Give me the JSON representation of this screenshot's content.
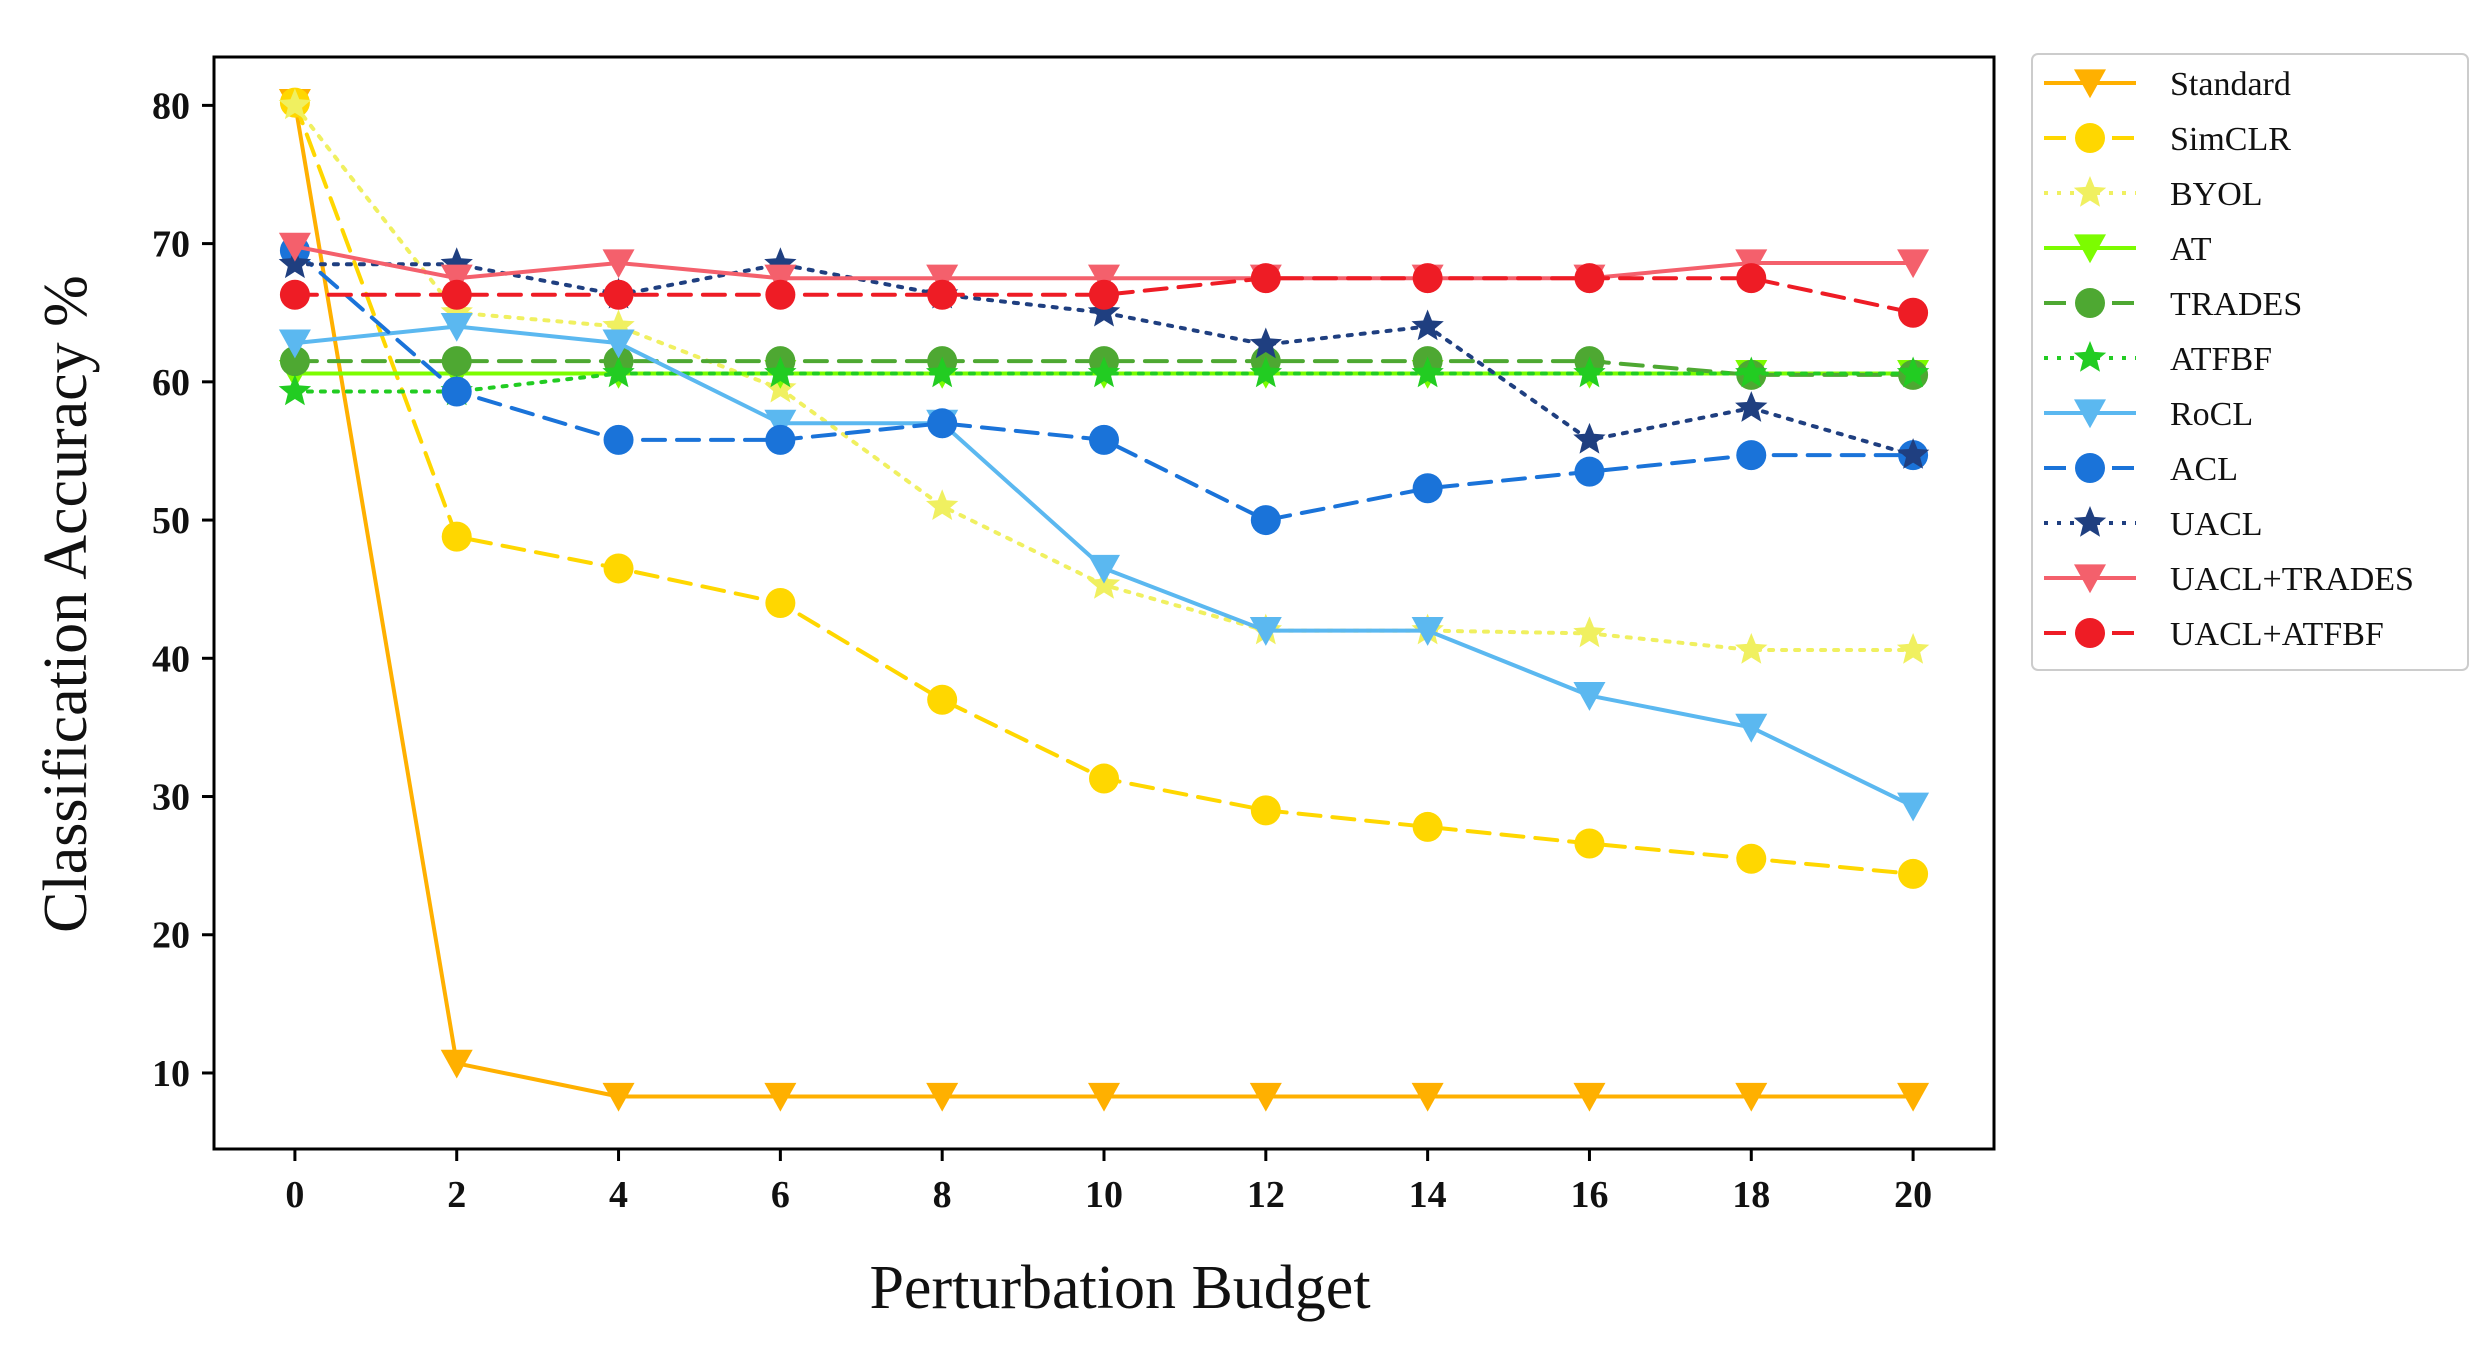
{
  "chart_data": {
    "type": "line",
    "title": "",
    "xlabel": "Perturbation Budget",
    "ylabel": "Classification Accuracy %",
    "x": [
      0,
      2,
      4,
      6,
      8,
      10,
      12,
      14,
      16,
      18,
      20
    ],
    "xlim": [
      -1,
      21
    ],
    "ylim": [
      4.5,
      83.5
    ],
    "xticks": [
      0,
      2,
      4,
      6,
      8,
      10,
      12,
      14,
      16,
      18,
      20
    ],
    "yticks": [
      10,
      20,
      30,
      40,
      50,
      60,
      70,
      80
    ],
    "grid": false,
    "legend_position": "outside-right",
    "series": [
      {
        "name": "Standard",
        "color": "#FFB000",
        "dash": "solid",
        "marker": "triangle-down",
        "values": [
          80.2,
          10.7,
          8.3,
          8.3,
          8.3,
          8.3,
          8.3,
          8.3,
          8.3,
          8.3,
          8.3
        ]
      },
      {
        "name": "SimCLR",
        "color": "#FFD700",
        "dash": "dashed",
        "marker": "circle",
        "values": [
          80.2,
          48.8,
          46.5,
          44.0,
          37.0,
          31.3,
          29.0,
          27.8,
          26.6,
          25.5,
          24.4
        ]
      },
      {
        "name": "BYOL",
        "color": "#F0F060",
        "dash": "dotted",
        "marker": "star",
        "values": [
          80.0,
          65.0,
          64.0,
          59.5,
          51.0,
          45.3,
          42.0,
          42.0,
          41.8,
          40.6,
          40.6
        ]
      },
      {
        "name": "AT",
        "color": "#7CFC00",
        "dash": "solid",
        "marker": "triangle-down",
        "values": [
          60.6,
          60.6,
          60.6,
          60.6,
          60.6,
          60.6,
          60.6,
          60.6,
          60.6,
          60.6,
          60.6
        ]
      },
      {
        "name": "TRADES",
        "color": "#4EA832",
        "dash": "dashed",
        "marker": "circle",
        "values": [
          61.5,
          61.5,
          61.5,
          61.5,
          61.5,
          61.5,
          61.5,
          61.5,
          61.5,
          60.5,
          60.5
        ]
      },
      {
        "name": "ATFBF",
        "color": "#22CC22",
        "dash": "dotted",
        "marker": "star",
        "values": [
          59.3,
          59.3,
          60.6,
          60.6,
          60.6,
          60.6,
          60.6,
          60.6,
          60.6,
          60.6,
          60.6
        ]
      },
      {
        "name": "RoCL",
        "color": "#5BB8F0",
        "dash": "solid",
        "marker": "triangle-down",
        "values": [
          62.8,
          64.0,
          62.8,
          57.0,
          57.0,
          46.5,
          42.0,
          42.0,
          37.3,
          35.0,
          29.3
        ]
      },
      {
        "name": "ACL",
        "color": "#1A73D9",
        "dash": "dashed",
        "marker": "circle",
        "values": [
          69.5,
          59.3,
          55.8,
          55.8,
          57.0,
          55.8,
          50.0,
          52.3,
          53.5,
          54.7,
          54.7
        ]
      },
      {
        "name": "UACL",
        "color": "#1F3F80",
        "dash": "dotted",
        "marker": "star",
        "values": [
          68.5,
          68.5,
          66.3,
          68.5,
          66.3,
          65.0,
          62.7,
          64.0,
          55.8,
          58.1,
          54.7
        ]
      },
      {
        "name": "UACL+TRADES",
        "color": "#F4606C",
        "dash": "solid",
        "marker": "triangle-down",
        "values": [
          69.8,
          67.5,
          68.6,
          67.5,
          67.5,
          67.5,
          67.5,
          67.5,
          67.5,
          68.6,
          68.6
        ]
      },
      {
        "name": "UACL+ATFBF",
        "color": "#EE1C25",
        "dash": "dashed",
        "marker": "circle",
        "values": [
          66.3,
          66.3,
          66.3,
          66.3,
          66.3,
          66.3,
          67.5,
          67.5,
          67.5,
          67.5,
          65.0
        ]
      }
    ]
  }
}
